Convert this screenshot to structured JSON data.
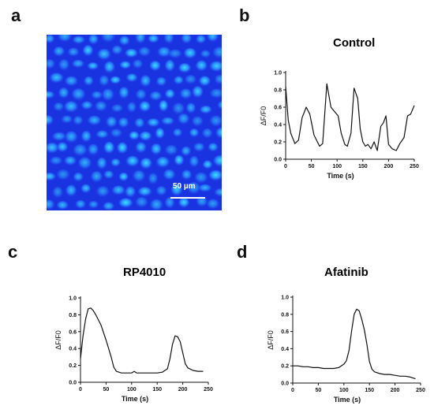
{
  "panels": {
    "a": "a",
    "b": "b",
    "c": "c",
    "d": "d"
  },
  "micrograph": {
    "scale_label": "50 µm"
  },
  "chart_data": [
    {
      "type": "line",
      "title": "Control",
      "xlabel": "Time (s)",
      "ylabel": "ΔF/F0",
      "xlim": [
        0,
        250
      ],
      "ylim": [
        0,
        1.0
      ],
      "xticks": [
        0,
        50,
        100,
        150,
        200,
        250
      ],
      "yticks": [
        0.0,
        0.2,
        0.4,
        0.6,
        0.8,
        1.0
      ],
      "series": [
        {
          "x": [
            0,
            5,
            10,
            18,
            25,
            32,
            40,
            47,
            55,
            60,
            66,
            72,
            80,
            88,
            95,
            102,
            108,
            115,
            120,
            127,
            133,
            140,
            145,
            150,
            155,
            160,
            166,
            172,
            178,
            185,
            190,
            195,
            200,
            207,
            215,
            222,
            230,
            237,
            243,
            250
          ],
          "y": [
            0.84,
            0.45,
            0.3,
            0.18,
            0.22,
            0.48,
            0.6,
            0.52,
            0.28,
            0.22,
            0.15,
            0.18,
            0.87,
            0.6,
            0.55,
            0.5,
            0.3,
            0.17,
            0.15,
            0.3,
            0.82,
            0.7,
            0.35,
            0.2,
            0.15,
            0.17,
            0.12,
            0.2,
            0.1,
            0.38,
            0.42,
            0.5,
            0.17,
            0.12,
            0.1,
            0.18,
            0.25,
            0.5,
            0.52,
            0.62
          ]
        }
      ]
    },
    {
      "type": "line",
      "title": "RP4010",
      "xlabel": "Time (s)",
      "ylabel": "ΔF/F0",
      "xlim": [
        0,
        250
      ],
      "ylim": [
        0,
        1.0
      ],
      "xticks": [
        0,
        50,
        100,
        150,
        200,
        250
      ],
      "yticks": [
        0.0,
        0.2,
        0.4,
        0.6,
        0.8,
        1.0
      ],
      "series": [
        {
          "x": [
            0,
            5,
            10,
            15,
            20,
            25,
            30,
            40,
            50,
            60,
            65,
            70,
            80,
            90,
            100,
            105,
            110,
            120,
            130,
            140,
            150,
            160,
            170,
            175,
            180,
            185,
            190,
            195,
            200,
            205,
            210,
            220,
            230,
            240
          ],
          "y": [
            0.28,
            0.55,
            0.75,
            0.87,
            0.88,
            0.85,
            0.8,
            0.68,
            0.5,
            0.3,
            0.18,
            0.13,
            0.11,
            0.11,
            0.11,
            0.13,
            0.11,
            0.11,
            0.11,
            0.11,
            0.11,
            0.12,
            0.16,
            0.28,
            0.45,
            0.55,
            0.54,
            0.48,
            0.35,
            0.22,
            0.17,
            0.14,
            0.13,
            0.13
          ]
        }
      ]
    },
    {
      "type": "line",
      "title": "Afatinib",
      "xlabel": "Time (s)",
      "ylabel": "ΔF/F0",
      "xlim": [
        0,
        250
      ],
      "ylim": [
        0,
        1.0
      ],
      "xticks": [
        0,
        50,
        100,
        150,
        200,
        250
      ],
      "yticks": [
        0.0,
        0.2,
        0.4,
        0.6,
        0.8,
        1.0
      ],
      "series": [
        {
          "x": [
            0,
            10,
            20,
            30,
            40,
            50,
            60,
            70,
            80,
            90,
            100,
            105,
            110,
            115,
            120,
            125,
            130,
            135,
            140,
            145,
            150,
            155,
            160,
            170,
            180,
            190,
            200,
            210,
            220,
            230,
            240
          ],
          "y": [
            0.2,
            0.2,
            0.19,
            0.19,
            0.18,
            0.18,
            0.17,
            0.17,
            0.17,
            0.18,
            0.22,
            0.26,
            0.38,
            0.6,
            0.8,
            0.86,
            0.84,
            0.74,
            0.62,
            0.45,
            0.25,
            0.16,
            0.13,
            0.11,
            0.1,
            0.1,
            0.09,
            0.08,
            0.08,
            0.07,
            0.05
          ]
        }
      ]
    }
  ]
}
